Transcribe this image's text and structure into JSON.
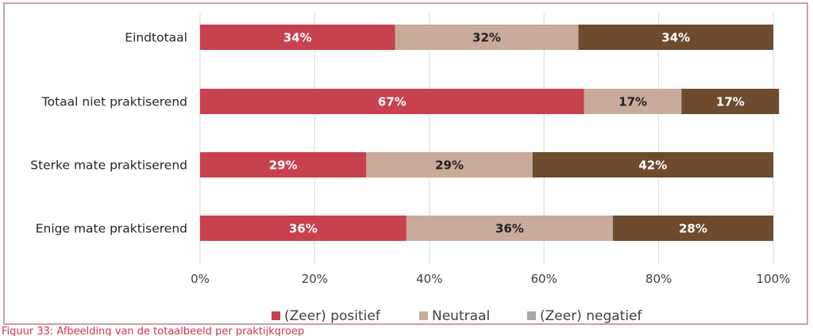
{
  "chart_data": {
    "type": "bar",
    "orientation": "horizontal",
    "stacked": true,
    "title": "",
    "xlabel": "",
    "ylabel": "",
    "xlim": [
      0,
      100
    ],
    "x_ticks": [
      "0%",
      "20%",
      "40%",
      "60%",
      "80%",
      "100%"
    ],
    "grid": "vertical",
    "legend_position": "bottom",
    "categories": [
      "Eindtotaal",
      "Totaal niet praktiserend",
      "Sterke mate praktiserend",
      "Enige mate praktiserend"
    ],
    "series": [
      {
        "name": "(Zeer) positief",
        "color": "#c8414f",
        "values": [
          34,
          67,
          29,
          36
        ],
        "labels": [
          "34%",
          "67%",
          "29%",
          "36%"
        ],
        "label_color": "#ffffff"
      },
      {
        "name": "Neutraal",
        "color": "#c8ab9b",
        "values": [
          32,
          17,
          29,
          36
        ],
        "labels": [
          "32%",
          "17%",
          "29%",
          "36%"
        ],
        "label_color": "#222222"
      },
      {
        "name": "(Zeer) negatief",
        "color": "#6e4b2d",
        "legend_color": "#a6a6a6",
        "values": [
          34,
          17,
          42,
          28
        ],
        "labels": [
          "34%",
          "17%",
          "42%",
          "28%"
        ],
        "label_color": "#ffffff"
      }
    ]
  },
  "caption": "Figuur 33: Afbeelding van de totaalbeeld per praktijkgroep"
}
